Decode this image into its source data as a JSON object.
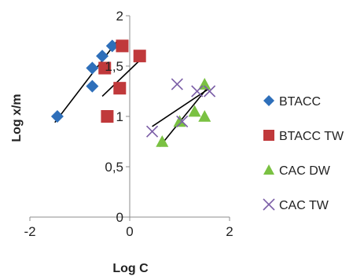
{
  "chart_data": {
    "type": "scatter",
    "xlabel": "Log C",
    "ylabel": "Log x/m",
    "xlim": [
      -2,
      2
    ],
    "ylim": [
      0,
      2
    ],
    "x_ticks": [
      -2,
      0,
      2
    ],
    "x_tick_labels": [
      "-2",
      "0",
      "2"
    ],
    "y_ticks": [
      0,
      0.5,
      1,
      1.5,
      2
    ],
    "y_tick_labels": [
      "0",
      "0,5",
      "1",
      "1,5",
      "2"
    ],
    "grid": false,
    "legend_position": "right",
    "series": [
      {
        "name": "BTACC",
        "marker": "diamond",
        "color": "#2e6fba",
        "points": [
          [
            -1.45,
            1.0
          ],
          [
            -0.75,
            1.3
          ],
          [
            -0.75,
            1.48
          ],
          [
            -0.55,
            1.6
          ],
          [
            -0.35,
            1.7
          ]
        ],
        "trendline": [
          [
            -1.5,
            0.94
          ],
          [
            -0.25,
            1.75
          ]
        ]
      },
      {
        "name": "BTACC TW",
        "marker": "square",
        "color": "#c0393b",
        "points": [
          [
            -0.45,
            1.0
          ],
          [
            -0.2,
            1.28
          ],
          [
            -0.5,
            1.48
          ],
          [
            -0.15,
            1.7
          ],
          [
            0.2,
            1.6
          ]
        ],
        "trendline": [
          [
            -0.55,
            1.2
          ],
          [
            0.25,
            1.58
          ]
        ]
      },
      {
        "name": "CAC DW",
        "marker": "triangle",
        "color": "#7ac142",
        "points": [
          [
            0.65,
            0.75
          ],
          [
            1.0,
            0.95
          ],
          [
            1.3,
            1.05
          ],
          [
            1.5,
            1.0
          ],
          [
            1.5,
            1.32
          ]
        ],
        "trendline": [
          [
            0.6,
            0.7
          ],
          [
            1.55,
            1.28
          ]
        ]
      },
      {
        "name": "CAC TW",
        "marker": "x",
        "color": "#7b5ea7",
        "points": [
          [
            0.45,
            0.85
          ],
          [
            0.95,
            1.32
          ],
          [
            1.05,
            0.95
          ],
          [
            1.35,
            1.25
          ],
          [
            1.6,
            1.25
          ]
        ],
        "trendline": [
          [
            0.45,
            0.9
          ],
          [
            1.6,
            1.28
          ]
        ]
      }
    ]
  }
}
